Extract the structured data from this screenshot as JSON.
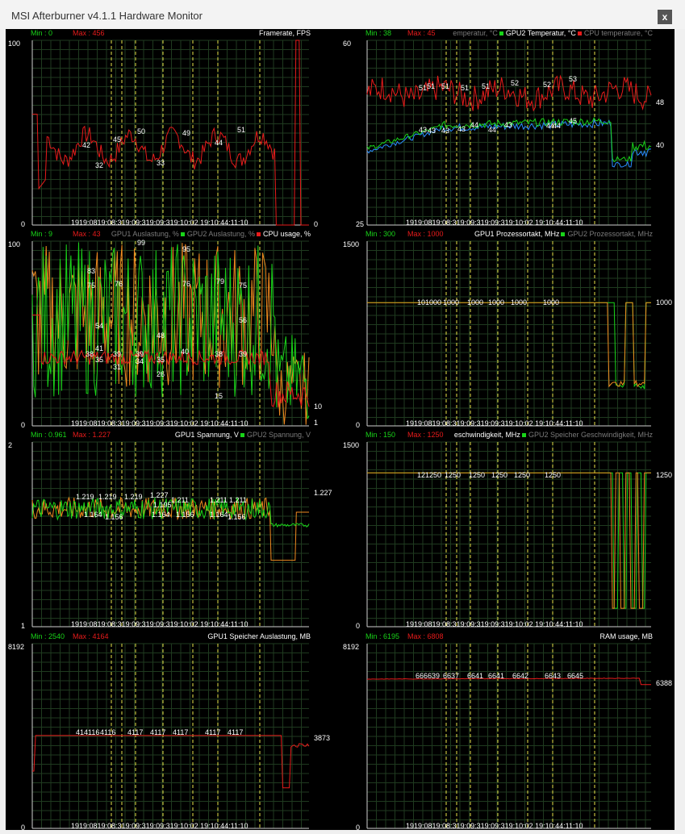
{
  "window": {
    "title": "MSI Afterburner v4.1.1 Hardware Monitor",
    "close_label": "x"
  },
  "time_ticks": [
    "19:08:31",
    "19:09:02",
    "19:09:31",
    "19:10:02",
    "19:10:44",
    "11:10"
  ],
  "time_axis_display": "1919:0819:08:319:09:319:09:319:10:02   19:10:44:11:10",
  "colors": {
    "background": "#000000",
    "grid": "#1f3a1f",
    "vline": "#e8e34a",
    "red": "#e81b1b",
    "green": "#19d419",
    "orange": "#f08a1f",
    "blue": "#2a8cff",
    "min_text": "#19d419",
    "max_text": "#e81b1b"
  },
  "charts": [
    {
      "min": "Min : 0",
      "max": "Max : 456",
      "legend": [
        {
          "text": "Framerate, FPS",
          "color": "#ffffff"
        }
      ],
      "y_top": "100",
      "y_bottom": "0",
      "right_labels": [
        "0"
      ],
      "peak_labels": [
        "42",
        "32",
        "45",
        "50",
        "33",
        "49",
        "44",
        "51"
      ]
    },
    {
      "min": "Min : 38",
      "max": "Max : 45",
      "legend": [
        {
          "text": "emperatur, °C",
          "color": "#7a7a7a"
        },
        {
          "text": "GPU2 Temperatur, °C",
          "color": "#ffffff"
        },
        {
          "text": "CPU temperature, °C",
          "color": "#7a7a7a"
        }
      ],
      "y_top": "60",
      "y_bottom": "25",
      "right_labels": [
        "48",
        "40"
      ],
      "peak_labels": [
        "51",
        "51",
        "51",
        "51",
        "51",
        "52",
        "52",
        "53",
        "43",
        "43",
        "43",
        "43",
        "44",
        "44",
        "43",
        "44",
        "44",
        "45"
      ]
    },
    {
      "min": "Min : 9",
      "max": "Max : 43",
      "legend": [
        {
          "text": "GPU1 Auslastung, %",
          "color": "#7a7a7a"
        },
        {
          "text": "GPU2 Auslastung, %",
          "color": "#7a7a7a"
        },
        {
          "text": "CPU usage, %",
          "color": "#ffffff"
        }
      ],
      "y_top": "100",
      "y_bottom": "0",
      "right_labels": [
        "10",
        "1"
      ],
      "peak_labels": [
        "99",
        "95",
        "83",
        "75",
        "76",
        "76",
        "79",
        "75",
        "54",
        "56",
        "41",
        "48",
        "38",
        "39",
        "39",
        "40",
        "38",
        "39",
        "35",
        "31",
        "34",
        "35",
        "26",
        "15"
      ]
    },
    {
      "min": "Min : 300",
      "max": "Max : 1000",
      "legend": [
        {
          "text": "GPU1 Prozessortakt, MHz",
          "color": "#ffffff"
        },
        {
          "text": "GPU2 Prozessortakt, MHz",
          "color": "#7a7a7a"
        }
      ],
      "y_top": "1500",
      "y_bottom": "0",
      "right_labels": [
        "1000"
      ],
      "peak_labels": [
        "101000",
        "1000",
        "1000",
        "1000",
        "1000",
        "1000"
      ]
    },
    {
      "min": "Min : 0.961",
      "max": "Max : 1.227",
      "legend": [
        {
          "text": "GPU1 Spannung, V",
          "color": "#ffffff"
        },
        {
          "text": "GPU2 Spannung, V",
          "color": "#7a7a7a"
        }
      ],
      "y_top": "2",
      "y_bottom": "1",
      "right_labels": [
        "1.227"
      ],
      "peak_labels": [
        "1.219",
        "1.219",
        "1.219",
        "1.227",
        "1.211",
        "1.211",
        "1.211",
        "1.195",
        "1.164",
        "1.156",
        "1.164",
        "1.156",
        "1.164",
        "1.156"
      ]
    },
    {
      "min": "Min : 150",
      "max": "Max : 1250",
      "legend": [
        {
          "text": "eschwindigkeit, MHz",
          "color": "#ffffff"
        },
        {
          "text": "GPU2 Speicher Geschwindigkeit, MHz",
          "color": "#7a7a7a"
        }
      ],
      "y_top": "1500",
      "y_bottom": "0",
      "right_labels": [
        "1250"
      ],
      "peak_labels": [
        "121250",
        "1250",
        "1250",
        "1250",
        "1250",
        "1250"
      ]
    },
    {
      "min": "Min : 2540",
      "max": "Max : 4164",
      "legend": [
        {
          "text": "GPU1 Speicher Auslastung, MB",
          "color": "#ffffff"
        }
      ],
      "y_top": "8192",
      "y_bottom": "0",
      "right_labels": [
        "3873"
      ],
      "peak_labels": [
        "414116",
        "4116",
        "4117",
        "4117",
        "4117",
        "4117",
        "4117"
      ]
    },
    {
      "min": "Min : 6195",
      "max": "Max : 6808",
      "legend": [
        {
          "text": "RAM usage, MB",
          "color": "#ffffff"
        }
      ],
      "y_top": "8192",
      "y_bottom": "0",
      "right_labels": [
        "6388"
      ],
      "peak_labels": [
        "666639",
        "6637",
        "6641",
        "6641",
        "6642",
        "6643",
        "6645"
      ]
    }
  ]
}
